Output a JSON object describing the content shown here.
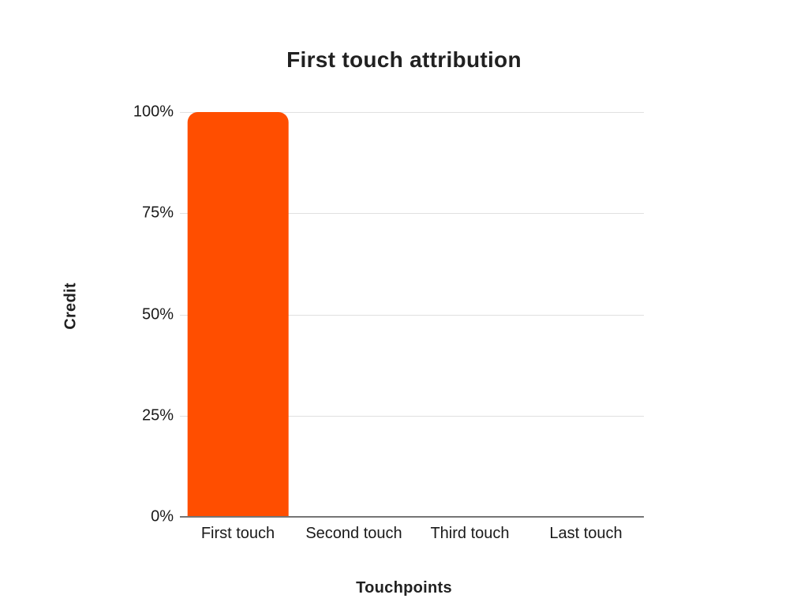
{
  "chart_data": {
    "type": "bar",
    "title": "First touch attribution",
    "xlabel": "Touchpoints",
    "ylabel": "Credit",
    "categories": [
      "First touch",
      "Second touch",
      "Third touch",
      "Last touch"
    ],
    "values": [
      100,
      0,
      0,
      0
    ],
    "value_unit": "%",
    "ylim": [
      0,
      100
    ],
    "yticks": [
      {
        "label": "100%",
        "value": 100
      },
      {
        "label": "75%",
        "value": 75
      },
      {
        "label": "50%",
        "value": 50
      },
      {
        "label": "25%",
        "value": 25
      },
      {
        "label": "0%",
        "value": 0
      }
    ],
    "grid": true,
    "legend": "none",
    "colors": {
      "bar": "#FF4E00",
      "gridline": "#E0E0E0",
      "axis_line": "#757575",
      "text": "#1A1A1A"
    }
  }
}
